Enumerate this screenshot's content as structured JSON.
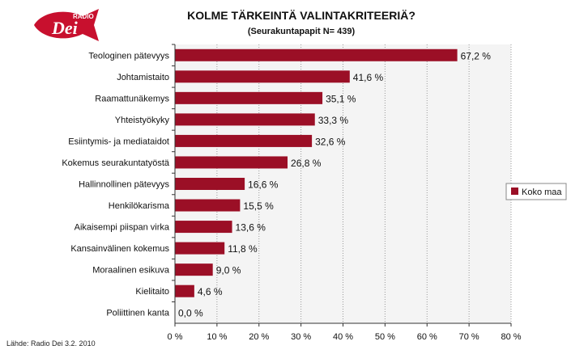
{
  "logo": {
    "small": "RADIO",
    "main": "Dei"
  },
  "source": "Lähde: Radio Dei 3.2. 2010",
  "colors": {
    "bar": "#9b0f26",
    "plot_bg": "#f4f4f4",
    "grid": "#999999"
  },
  "chart_data": {
    "type": "bar",
    "orientation": "horizontal",
    "title": "KOLME TÄRKEINTÄ VALINTAKRITEERIÄ?",
    "subtitle": "(Seurakuntapapit N= 439)",
    "categories": [
      "Teologinen pätevyys",
      "Johtamistaito",
      "Raamattunäkemys",
      "Yhteistyökyky",
      "Esiintymis- ja mediataidot",
      "Kokemus seurakuntatyöstä",
      "Hallinnollinen pätevyys",
      "Henkilökarisma",
      "Aikaisempi piispan virka",
      "Kansainvälinen kokemus",
      "Moraalinen esikuva",
      "Kielitaito",
      "Poliittinen kanta"
    ],
    "series": [
      {
        "name": "Koko maa",
        "values": [
          67.2,
          41.6,
          35.1,
          33.3,
          32.6,
          26.8,
          16.6,
          15.5,
          13.6,
          11.8,
          9.0,
          4.6,
          0.0
        ],
        "value_labels": [
          "67,2 %",
          "41,6 %",
          "35,1 %",
          "33,3 %",
          "32,6 %",
          "26,8 %",
          "16,6 %",
          "15,5 %",
          "13,6 %",
          "11,8 %",
          "9,0 %",
          "4,6 %",
          "0,0 %"
        ]
      }
    ],
    "xlim": [
      0,
      80
    ],
    "xticks": [
      0,
      10,
      20,
      30,
      40,
      50,
      60,
      70,
      80
    ],
    "xtick_labels": [
      "0 %",
      "10 %",
      "20 %",
      "30 %",
      "40 %",
      "50 %",
      "60 %",
      "70 %",
      "80 %"
    ],
    "grid": "vertical",
    "legend": "right"
  }
}
